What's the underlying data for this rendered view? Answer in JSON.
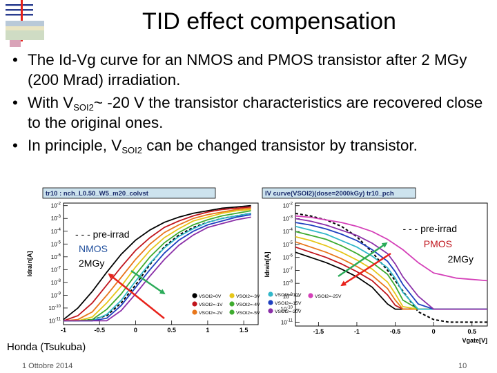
{
  "slide": {
    "title": "TID effect compensation",
    "bullets": [
      {
        "parts": [
          {
            "t": "The Id-Vg curve for an NMOS and PMOS transistor after 2 MGy (200 Mrad) irradiation."
          }
        ]
      },
      {
        "parts": [
          {
            "t": "With V"
          },
          {
            "sub": "SOI2"
          },
          {
            "t": "~ -20 V the transistor characteristics are recovered close to the original ones."
          }
        ]
      },
      {
        "parts": [
          {
            "t": "In principle, V"
          },
          {
            "sub": "SOI2"
          },
          {
            "t": " can be changed transistor by transistor."
          }
        ]
      }
    ],
    "footer_left": "Honda (Tsukuba)",
    "footer_date": "1 Ottobre 2014",
    "page_number": "10"
  },
  "colors": {
    "title_box": "#cde3ee",
    "frame": "#000000",
    "red_arrow": "#e8221b",
    "green_arrow": "#2bab59",
    "nmos_label": "#1f4e9c",
    "pmos_label": "#c0141c"
  },
  "chart_data": [
    {
      "type": "line",
      "title": "tr10 : nch_L0.50_W5_m20_colvst",
      "xlabel": "",
      "ylabel": "Idrain[A]",
      "x_ticks": [
        "-1",
        "-0.5",
        "0",
        "0.5",
        "1",
        "1.5"
      ],
      "y_ticks": [
        "10-2",
        "10-3",
        "10-4",
        "10-5",
        "10-6",
        "10-7",
        "10-8",
        "10-9",
        "10-10",
        "10-11"
      ],
      "xlim": [
        -1.0,
        1.7
      ],
      "ylim_log10": [
        -11.3,
        -1.8
      ],
      "log_y": true,
      "annotation_lines": [
        "- - - pre-irrad",
        "NMOS",
        "2MGy"
      ],
      "series": [
        {
          "color": "#000000",
          "dashed": true,
          "x": [
            -1.0,
            -0.8,
            -0.6,
            -0.4,
            -0.2,
            0.0,
            0.2,
            0.4,
            0.6,
            0.8,
            1.0,
            1.2,
            1.4,
            1.6
          ],
          "log10_y": [
            -11.0,
            -11.0,
            -10.9,
            -10.6,
            -9.6,
            -8.2,
            -6.6,
            -5.2,
            -4.3,
            -3.7,
            -3.3,
            -3.0,
            -2.8,
            -2.6
          ]
        },
        {
          "color": "#000000",
          "x": [
            -1.0,
            -0.8,
            -0.6,
            -0.4,
            -0.2,
            0.0,
            0.2,
            0.4,
            0.6,
            0.8,
            1.0,
            1.2,
            1.4,
            1.6
          ],
          "log10_y": [
            -10.9,
            -10.0,
            -8.7,
            -7.2,
            -5.8,
            -4.7,
            -3.9,
            -3.3,
            -2.9,
            -2.6,
            -2.4,
            -2.2,
            -2.1,
            -2.0
          ]
        },
        {
          "color": "#c0141c",
          "x": [
            -1.0,
            -0.8,
            -0.6,
            -0.4,
            -0.2,
            0.0,
            0.2,
            0.4,
            0.6,
            0.8,
            1.0,
            1.2,
            1.4,
            1.6
          ],
          "log10_y": [
            -11.0,
            -10.6,
            -9.6,
            -8.2,
            -6.8,
            -5.5,
            -4.5,
            -3.7,
            -3.2,
            -2.8,
            -2.5,
            -2.3,
            -2.2,
            -2.1
          ]
        },
        {
          "color": "#e8761b",
          "x": [
            -1.0,
            -0.8,
            -0.6,
            -0.4,
            -0.2,
            0.0,
            0.2,
            0.4,
            0.6,
            0.8,
            1.0,
            1.2,
            1.4,
            1.6
          ],
          "log10_y": [
            -11.0,
            -10.9,
            -10.3,
            -9.0,
            -7.6,
            -6.2,
            -5.0,
            -4.1,
            -3.5,
            -3.0,
            -2.7,
            -2.5,
            -2.3,
            -2.2
          ]
        },
        {
          "color": "#e6c619",
          "x": [
            -1.0,
            -0.8,
            -0.6,
            -0.4,
            -0.2,
            0.0,
            0.2,
            0.4,
            0.6,
            0.8,
            1.0,
            1.2,
            1.4,
            1.6
          ],
          "log10_y": [
            -11.0,
            -11.0,
            -10.7,
            -9.6,
            -8.3,
            -6.8,
            -5.5,
            -4.5,
            -3.8,
            -3.2,
            -2.9,
            -2.6,
            -2.4,
            -2.3
          ]
        },
        {
          "color": "#3eab2f",
          "x": [
            -1.0,
            -0.8,
            -0.6,
            -0.4,
            -0.2,
            0.0,
            0.2,
            0.4,
            0.6,
            0.8,
            1.0,
            1.2,
            1.4,
            1.6
          ],
          "log10_y": [
            -11.0,
            -11.0,
            -10.9,
            -10.1,
            -8.9,
            -7.4,
            -6.0,
            -4.9,
            -4.1,
            -3.5,
            -3.1,
            -2.8,
            -2.6,
            -2.4
          ]
        },
        {
          "color": "#31b7c9",
          "x": [
            -1.0,
            -0.8,
            -0.6,
            -0.4,
            -0.2,
            0.0,
            0.2,
            0.4,
            0.6,
            0.8,
            1.0,
            1.2,
            1.4,
            1.6
          ],
          "log10_y": [
            -11.0,
            -11.0,
            -11.0,
            -10.5,
            -9.4,
            -7.9,
            -6.5,
            -5.3,
            -4.4,
            -3.8,
            -3.3,
            -3.0,
            -2.8,
            -2.6
          ]
        },
        {
          "color": "#1d3fbf",
          "x": [
            -1.0,
            -0.8,
            -0.6,
            -0.4,
            -0.2,
            0.0,
            0.2,
            0.4,
            0.6,
            0.8,
            1.0,
            1.2,
            1.4,
            1.6
          ],
          "log10_y": [
            -11.0,
            -11.0,
            -11.0,
            -10.8,
            -9.8,
            -8.4,
            -7.0,
            -5.7,
            -4.7,
            -4.0,
            -3.5,
            -3.2,
            -2.9,
            -2.7
          ]
        },
        {
          "color": "#8a2fa8",
          "x": [
            -1.0,
            -0.8,
            -0.6,
            -0.4,
            -0.2,
            0.0,
            0.2,
            0.4,
            0.6,
            0.8,
            1.0,
            1.2,
            1.4,
            1.6
          ],
          "log10_y": [
            -11.0,
            -11.0,
            -11.0,
            -11.0,
            -10.2,
            -8.9,
            -7.5,
            -6.2,
            -5.1,
            -4.3,
            -3.7,
            -3.4,
            -3.1,
            -2.9
          ]
        }
      ]
    },
    {
      "type": "line",
      "title": "IV curve(VSOI2)(dose=2000kGy) tr10_pch",
      "xlabel": "Vgate[V]",
      "ylabel": "Idrain[A]",
      "x_ticks": [
        "-1.5",
        "-1",
        "-0.5",
        "0",
        "0.5"
      ],
      "y_ticks": [
        "10-2",
        "10-3",
        "10-4",
        "10-5",
        "10-6",
        "10-7",
        "10-8",
        "10-9",
        "10-10",
        "10-11"
      ],
      "xlim": [
        -1.8,
        0.7
      ],
      "ylim_log10": [
        -11.3,
        -1.8
      ],
      "log_y": true,
      "annotation_lines": [
        "- - - pre-irrad",
        "PMOS",
        "2MGy"
      ],
      "series": [
        {
          "color": "#000000",
          "dashed": true,
          "x": [
            -1.8,
            -1.6,
            -1.4,
            -1.2,
            -1.0,
            -0.8,
            -0.6,
            -0.4,
            -0.3,
            -0.2,
            0.0,
            0.2,
            0.4,
            0.7
          ],
          "log10_y": [
            -2.6,
            -2.8,
            -3.1,
            -3.6,
            -4.4,
            -5.6,
            -7.0,
            -8.6,
            -9.4,
            -10.2,
            -10.8,
            -11.0,
            -11.0,
            -11.0
          ]
        },
        {
          "color": "#000000",
          "x": [
            -1.8,
            -1.6,
            -1.4,
            -1.2,
            -1.0,
            -0.8,
            -0.6,
            -0.5,
            -0.4,
            -0.2,
            0.0,
            0.3,
            0.7
          ],
          "log10_y": [
            -5.6,
            -6.0,
            -6.4,
            -6.9,
            -7.5,
            -8.3,
            -9.6,
            -10.0,
            -10.0,
            -10.0,
            -10.0,
            -10.0,
            -10.0
          ]
        },
        {
          "color": "#c0141c",
          "x": [
            -1.8,
            -1.6,
            -1.4,
            -1.2,
            -1.0,
            -0.8,
            -0.6,
            -0.5,
            -0.4,
            -0.2,
            0.0,
            0.3,
            0.7
          ],
          "log10_y": [
            -5.2,
            -5.6,
            -6.0,
            -6.5,
            -7.1,
            -7.8,
            -8.9,
            -9.7,
            -10.0,
            -10.0,
            -10.0,
            -10.0,
            -10.0
          ]
        },
        {
          "color": "#e8761b",
          "x": [
            -1.8,
            -1.6,
            -1.4,
            -1.2,
            -1.0,
            -0.8,
            -0.6,
            -0.5,
            -0.4,
            -0.2,
            0.0,
            0.3,
            0.7
          ],
          "log10_y": [
            -4.8,
            -5.2,
            -5.6,
            -6.1,
            -6.7,
            -7.4,
            -8.4,
            -9.3,
            -10.0,
            -10.0,
            -10.0,
            -10.0,
            -10.0
          ]
        },
        {
          "color": "#e6c619",
          "x": [
            -1.8,
            -1.6,
            -1.4,
            -1.2,
            -1.0,
            -0.8,
            -0.6,
            -0.5,
            -0.4,
            -0.2,
            0.0,
            0.3,
            0.7
          ],
          "log10_y": [
            -4.4,
            -4.7,
            -5.1,
            -5.6,
            -6.2,
            -6.9,
            -7.9,
            -8.8,
            -9.8,
            -10.0,
            -10.0,
            -10.0,
            -10.0
          ]
        },
        {
          "color": "#3eab2f",
          "x": [
            -1.8,
            -1.6,
            -1.4,
            -1.2,
            -1.0,
            -0.8,
            -0.6,
            -0.5,
            -0.4,
            -0.2,
            0.0,
            0.3,
            0.7
          ],
          "log10_y": [
            -4.0,
            -4.3,
            -4.6,
            -5.1,
            -5.7,
            -6.4,
            -7.3,
            -8.2,
            -9.3,
            -10.0,
            -10.0,
            -10.0,
            -10.0
          ]
        },
        {
          "color": "#31b7c9",
          "x": [
            -1.8,
            -1.6,
            -1.4,
            -1.2,
            -1.0,
            -0.8,
            -0.6,
            -0.5,
            -0.4,
            -0.2,
            0.0,
            0.3,
            0.7
          ],
          "log10_y": [
            -3.6,
            -3.9,
            -4.2,
            -4.7,
            -5.2,
            -5.9,
            -6.8,
            -7.6,
            -8.7,
            -10.0,
            -10.0,
            -10.0,
            -10.0
          ]
        },
        {
          "color": "#1d3fbf",
          "x": [
            -1.8,
            -1.6,
            -1.4,
            -1.2,
            -1.0,
            -0.8,
            -0.6,
            -0.5,
            -0.4,
            -0.2,
            0.0,
            0.3,
            0.7
          ],
          "log10_y": [
            -3.3,
            -3.5,
            -3.8,
            -4.2,
            -4.7,
            -5.4,
            -6.3,
            -7.1,
            -8.1,
            -9.6,
            -10.0,
            -10.0,
            -10.0
          ]
        },
        {
          "color": "#8a2fa8",
          "x": [
            -1.8,
            -1.6,
            -1.4,
            -1.2,
            -1.0,
            -0.8,
            -0.6,
            -0.5,
            -0.4,
            -0.2,
            0.0,
            0.3,
            0.7
          ],
          "log10_y": [
            -3.0,
            -3.2,
            -3.5,
            -3.9,
            -4.3,
            -4.9,
            -5.7,
            -6.5,
            -7.5,
            -9.0,
            -10.0,
            -10.0,
            -10.0
          ]
        },
        {
          "color": "#d43fb8",
          "x": [
            -1.8,
            -1.6,
            -1.4,
            -1.2,
            -1.0,
            -0.8,
            -0.6,
            -0.4,
            -0.2,
            0.0,
            0.3,
            0.7
          ],
          "log10_y": [
            -2.8,
            -2.9,
            -3.1,
            -3.3,
            -3.6,
            -4.0,
            -4.6,
            -5.4,
            -6.4,
            -7.2,
            -7.6,
            -7.8
          ]
        }
      ]
    }
  ],
  "legend": [
    {
      "label": "VSOI2=0V",
      "color": "#000000"
    },
    {
      "label": "VSOI2=-1V",
      "color": "#c0141c"
    },
    {
      "label": "VSOI2=-2V",
      "color": "#e8761b"
    },
    {
      "label": "VSOI2=-3V",
      "color": "#e6c619"
    },
    {
      "label": "VSOI2=-4V",
      "color": "#3eab2f"
    },
    {
      "label": "VSOI2=-5V",
      "color": "#3eab2f"
    },
    {
      "label": "VSOI2=-10V",
      "color": "#31b7c9"
    },
    {
      "label": "VSOI2=-15V",
      "color": "#1d3fbf"
    },
    {
      "label": "VSOI2=-20V",
      "color": "#8a2fa8"
    },
    {
      "label": "VSOI2=-25V",
      "color": "#d43fb8"
    }
  ]
}
